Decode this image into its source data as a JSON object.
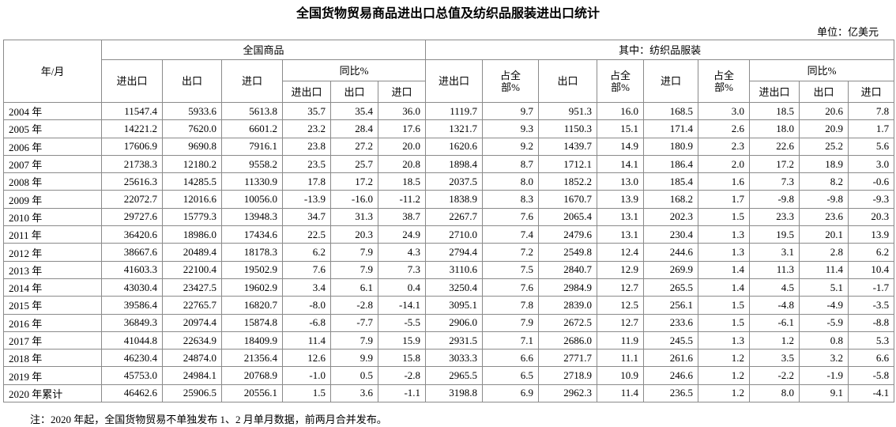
{
  "title": "全国货物贸易商品进出口总值及纺织品服装进出口统计",
  "unit": "单位：亿美元",
  "note": "注：2020 年起，全国货物贸易不单独发布 1、2 月单月数据，前两月合并发布。",
  "table": {
    "corner": "年/月",
    "groups": [
      "全国商品",
      "其中：纺织品服装"
    ],
    "yoy": [
      "同比%",
      "同比%"
    ],
    "columns": [
      "进出口",
      "出口",
      "进口",
      "进出口",
      "出口",
      "进口",
      "进出口",
      "占全部%",
      "出口",
      "占全部%",
      "进口",
      "占全部%",
      "进出口",
      "出口",
      "进口"
    ],
    "rows": [
      [
        "2004 年",
        "11547.4",
        "5933.6",
        "5613.8",
        "35.7",
        "35.4",
        "36.0",
        "1119.7",
        "9.7",
        "951.3",
        "16.0",
        "168.5",
        "3.0",
        "18.5",
        "20.6",
        "7.8"
      ],
      [
        "2005 年",
        "14221.2",
        "7620.0",
        "6601.2",
        "23.2",
        "28.4",
        "17.6",
        "1321.7",
        "9.3",
        "1150.3",
        "15.1",
        "171.4",
        "2.6",
        "18.0",
        "20.9",
        "1.7"
      ],
      [
        "2006 年",
        "17606.9",
        "9690.8",
        "7916.1",
        "23.8",
        "27.2",
        "20.0",
        "1620.6",
        "9.2",
        "1439.7",
        "14.9",
        "180.9",
        "2.3",
        "22.6",
        "25.2",
        "5.6"
      ],
      [
        "2007 年",
        "21738.3",
        "12180.2",
        "9558.2",
        "23.5",
        "25.7",
        "20.8",
        "1898.4",
        "8.7",
        "1712.1",
        "14.1",
        "186.4",
        "2.0",
        "17.2",
        "18.9",
        "3.0"
      ],
      [
        "2008 年",
        "25616.3",
        "14285.5",
        "11330.9",
        "17.8",
        "17.2",
        "18.5",
        "2037.5",
        "8.0",
        "1852.2",
        "13.0",
        "185.4",
        "1.6",
        "7.3",
        "8.2",
        "-0.6"
      ],
      [
        "2009 年",
        "22072.7",
        "12016.6",
        "10056.0",
        "-13.9",
        "-16.0",
        "-11.2",
        "1838.9",
        "8.3",
        "1670.7",
        "13.9",
        "168.2",
        "1.7",
        "-9.8",
        "-9.8",
        "-9.3"
      ],
      [
        "2010 年",
        "29727.6",
        "15779.3",
        "13948.3",
        "34.7",
        "31.3",
        "38.7",
        "2267.7",
        "7.6",
        "2065.4",
        "13.1",
        "202.3",
        "1.5",
        "23.3",
        "23.6",
        "20.3"
      ],
      [
        "2011 年",
        "36420.6",
        "18986.0",
        "17434.6",
        "22.5",
        "20.3",
        "24.9",
        "2710.0",
        "7.4",
        "2479.6",
        "13.1",
        "230.4",
        "1.3",
        "19.5",
        "20.1",
        "13.9"
      ],
      [
        "2012 年",
        "38667.6",
        "20489.4",
        "18178.3",
        "6.2",
        "7.9",
        "4.3",
        "2794.4",
        "7.2",
        "2549.8",
        "12.4",
        "244.6",
        "1.3",
        "3.1",
        "2.8",
        "6.2"
      ],
      [
        "2013 年",
        "41603.3",
        "22100.4",
        "19502.9",
        "7.6",
        "7.9",
        "7.3",
        "3110.6",
        "7.5",
        "2840.7",
        "12.9",
        "269.9",
        "1.4",
        "11.3",
        "11.4",
        "10.4"
      ],
      [
        "2014 年",
        "43030.4",
        "23427.5",
        "19602.9",
        "3.4",
        "6.1",
        "0.4",
        "3250.4",
        "7.6",
        "2984.9",
        "12.7",
        "265.5",
        "1.4",
        "4.5",
        "5.1",
        "-1.7"
      ],
      [
        "2015 年",
        "39586.4",
        "22765.7",
        "16820.7",
        "-8.0",
        "-2.8",
        "-14.1",
        "3095.1",
        "7.8",
        "2839.0",
        "12.5",
        "256.1",
        "1.5",
        "-4.8",
        "-4.9",
        "-3.5"
      ],
      [
        "2016 年",
        "36849.3",
        "20974.4",
        "15874.8",
        "-6.8",
        "-7.7",
        "-5.5",
        "2906.0",
        "7.9",
        "2672.5",
        "12.7",
        "233.6",
        "1.5",
        "-6.1",
        "-5.9",
        "-8.8"
      ],
      [
        "2017 年",
        "41044.8",
        "22634.9",
        "18409.9",
        "11.4",
        "7.9",
        "15.9",
        "2931.5",
        "7.1",
        "2686.0",
        "11.9",
        "245.5",
        "1.3",
        "1.2",
        "0.8",
        "5.3"
      ],
      [
        "2018 年",
        "46230.4",
        "24874.0",
        "21356.4",
        "12.6",
        "9.9",
        "15.8",
        "3033.3",
        "6.6",
        "2771.7",
        "11.1",
        "261.6",
        "1.2",
        "3.5",
        "3.2",
        "6.6"
      ],
      [
        "2019 年",
        "45753.0",
        "24984.1",
        "20768.9",
        "-1.0",
        "0.5",
        "-2.8",
        "2965.5",
        "6.5",
        "2718.9",
        "10.9",
        "246.6",
        "1.2",
        "-2.2",
        "-1.9",
        "-5.8"
      ],
      [
        "2020 年累计",
        "46462.6",
        "25906.5",
        "20556.1",
        "1.5",
        "3.6",
        "-1.1",
        "3198.8",
        "6.9",
        "2962.3",
        "11.4",
        "236.5",
        "1.2",
        "8.0",
        "9.1",
        "-4.1"
      ]
    ]
  }
}
